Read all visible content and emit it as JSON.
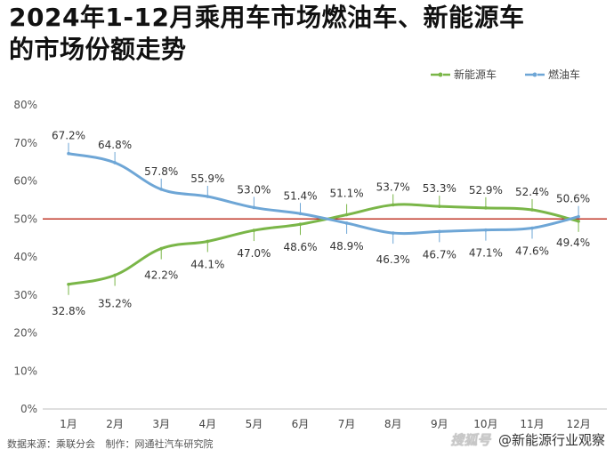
{
  "title_line1": "2024年1-12月乘用车市场燃油车、新能源车",
  "title_line2": "的市场份额走势",
  "footer": {
    "source_label": "数据来源：乘联分会",
    "maker_label": "制作：网通社汽车研究院",
    "watermark_logo": "搜狐号",
    "watermark_text": "@新能源行业观察"
  },
  "chart_data": {
    "type": "line",
    "categories": [
      "1月",
      "2月",
      "3月",
      "4月",
      "5月",
      "6月",
      "7月",
      "8月",
      "9月",
      "10月",
      "11月",
      "12月"
    ],
    "series": [
      {
        "name": "新能源车",
        "color": "#7ab648",
        "values": [
          32.8,
          35.2,
          42.2,
          44.1,
          47.0,
          48.6,
          51.1,
          53.7,
          53.3,
          52.9,
          52.4,
          49.4
        ],
        "labels": [
          "32.8%",
          "35.2%",
          "42.2%",
          "44.1%",
          "47.0%",
          "48.6%",
          "51.1%",
          "53.7%",
          "53.3%",
          "52.9%",
          "52.4%",
          "49.4%"
        ]
      },
      {
        "name": "燃油车",
        "color": "#6ea6d6",
        "values": [
          67.2,
          64.8,
          57.8,
          55.9,
          53.0,
          51.4,
          48.9,
          46.3,
          46.7,
          47.1,
          47.6,
          50.6
        ],
        "labels": [
          "67.2%",
          "64.8%",
          "57.8%",
          "55.9%",
          "53.0%",
          "51.4%",
          "48.9%",
          "46.3%",
          "46.7%",
          "47.1%",
          "47.6%",
          "50.6%"
        ]
      }
    ],
    "yticks": [
      "0%",
      "10%",
      "20%",
      "30%",
      "40%",
      "50%",
      "60%",
      "70%",
      "80%"
    ],
    "ylim": [
      0,
      80
    ],
    "reference_line": {
      "value": 50,
      "color": "#c0392b"
    },
    "grid": false,
    "legend": "top-right"
  }
}
